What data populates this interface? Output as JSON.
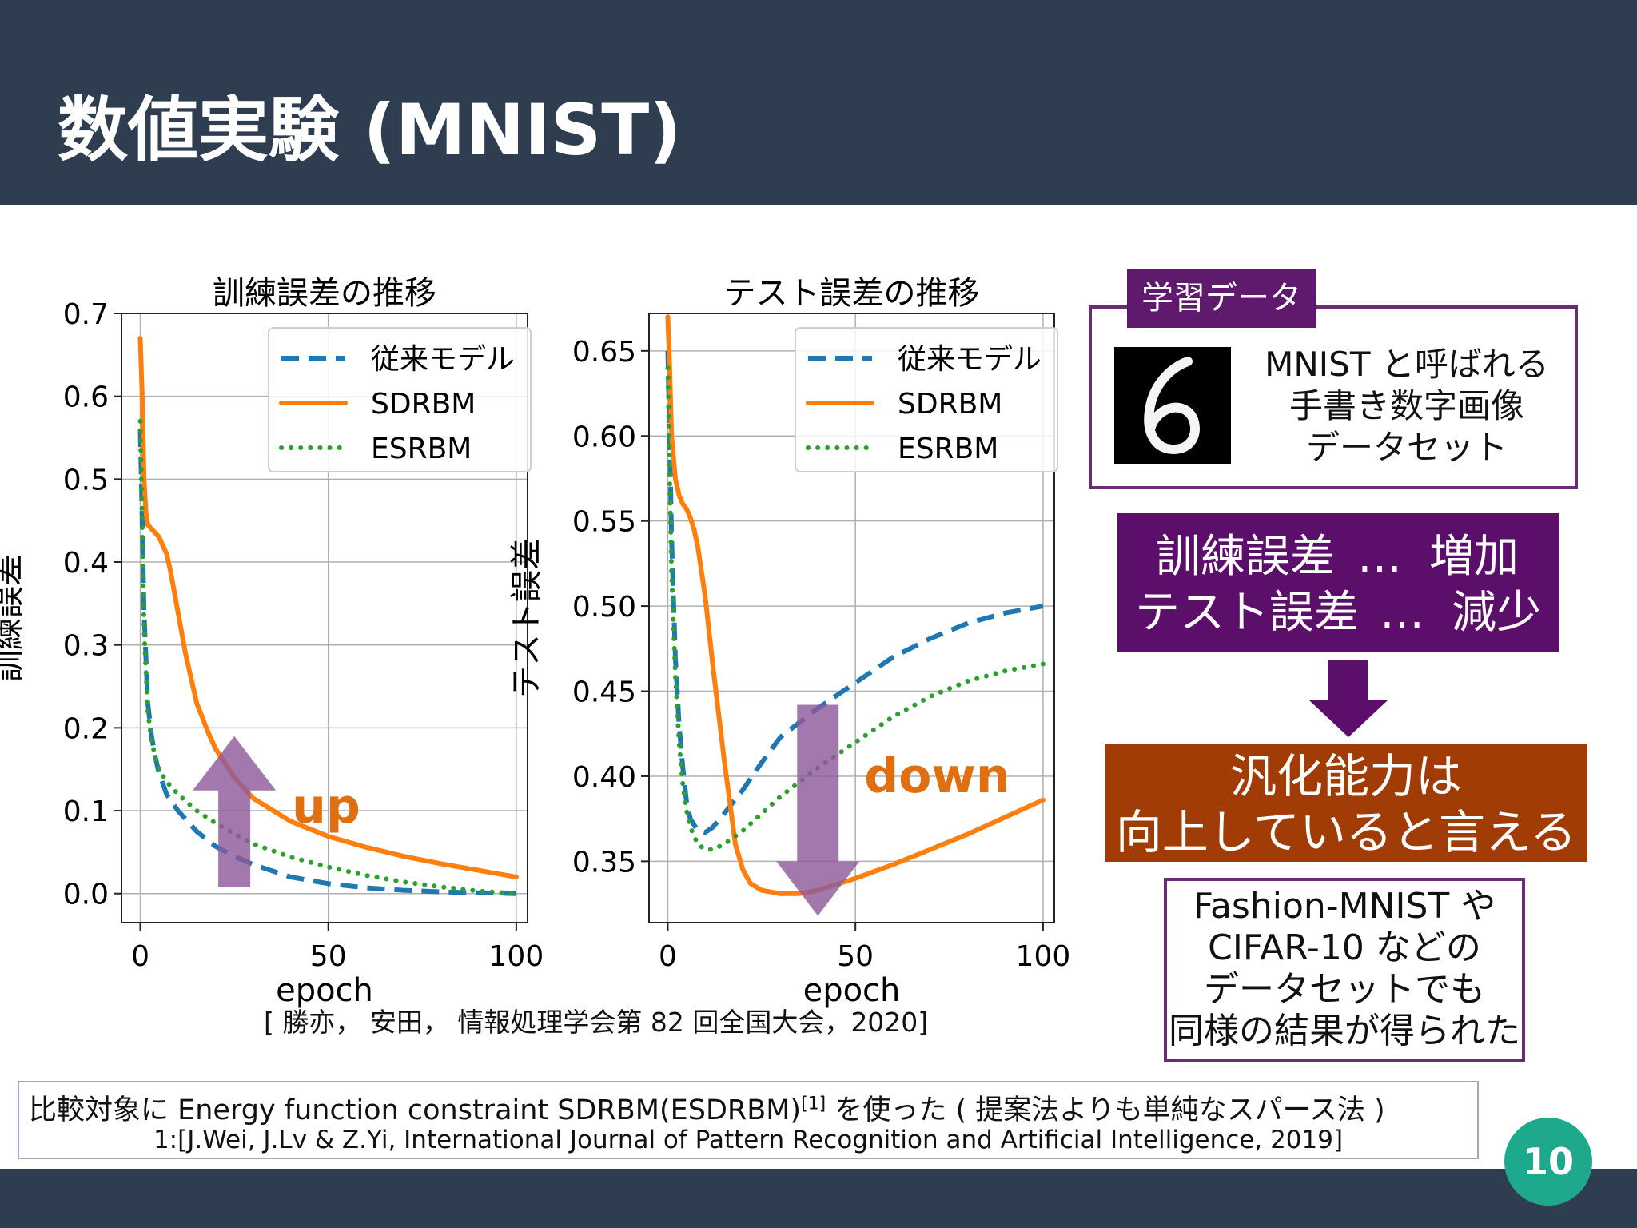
{
  "header": {
    "title": "数値実験 (MNIST)"
  },
  "page_number": "10",
  "citation": "[ 勝亦， 安田， 情報処理学会第 82 回全国大会，2020]",
  "footnote": {
    "line1_a": "比較対象に Energy function constraint SDRBM(ESDRBM)",
    "line1_sup": "[1]",
    "line1_b": " を使った ( 提案法よりも単純なスパース法 )",
    "line2": "1:[J.Wei, J.Lv & Z.Yi, International Journal of Pattern Recognition and Artificial Intelligence, 2019]"
  },
  "data_box": {
    "tab": "学習データ",
    "lines": [
      "MNIST と呼ばれる",
      "手書き数字画像",
      "データセット"
    ],
    "digit": "6"
  },
  "result_box": {
    "line1_left": "訓練誤差",
    "line1_mid": "…",
    "line1_right": "増加",
    "line2_left": "テスト誤差",
    "line2_mid": "…",
    "line2_right": "減少"
  },
  "conclusion": {
    "lines": [
      "汎化能力は",
      "向上していると言える"
    ]
  },
  "other_datasets": {
    "lines": [
      "Fashion-MNIST や",
      "CIFAR-10 などの",
      "データセットでも",
      "同様の結果が得られた"
    ]
  },
  "colors": {
    "header": "#2e3d50",
    "blue": "#1f77b4",
    "orange": "#ff7f0e",
    "green": "#2ca02c",
    "purple": "#5c0f6a",
    "rust": "#a23c07",
    "teal": "#1fa98c",
    "arrow": "#8e5a9b",
    "anno": "#e06f12"
  },
  "chart_data": [
    {
      "type": "line",
      "title": "訓練誤差の推移",
      "xlabel": "epoch",
      "ylabel": "訓練誤差",
      "xlim": [
        -5,
        103
      ],
      "ylim": [
        -0.035,
        0.7
      ],
      "xticks": [
        0,
        50,
        100
      ],
      "yticks": [
        0.0,
        0.1,
        0.2,
        0.3,
        0.4,
        0.5,
        0.6,
        0.7
      ],
      "ytick_labels": [
        "0.0",
        "0.1",
        "0.2",
        "0.3",
        "0.4",
        "0.5",
        "0.6",
        "0.7"
      ],
      "grid": true,
      "legend": "upper right",
      "annotation": {
        "text": "up",
        "arrow": "up",
        "x": 25
      },
      "series": [
        {
          "name": "従来モデル",
          "style": "dashed",
          "x": [
            0,
            0.5,
            1,
            2,
            3,
            4,
            5,
            7,
            10,
            15,
            20,
            25,
            30,
            40,
            50,
            60,
            70,
            80,
            90,
            100
          ],
          "y": [
            0.56,
            0.45,
            0.34,
            0.23,
            0.19,
            0.165,
            0.145,
            0.12,
            0.1,
            0.075,
            0.057,
            0.045,
            0.035,
            0.02,
            0.012,
            0.007,
            0.004,
            0.002,
            0.001,
            0.0
          ]
        },
        {
          "name": "SDRBM",
          "style": "solid",
          "x": [
            0,
            0.5,
            1,
            1.5,
            2,
            3,
            4,
            5,
            6,
            7,
            8,
            10,
            12,
            15,
            18,
            20,
            25,
            30,
            40,
            50,
            60,
            70,
            80,
            90,
            100
          ],
          "y": [
            0.67,
            0.6,
            0.5,
            0.46,
            0.445,
            0.44,
            0.435,
            0.43,
            0.42,
            0.41,
            0.39,
            0.34,
            0.29,
            0.23,
            0.195,
            0.175,
            0.14,
            0.115,
            0.087,
            0.069,
            0.056,
            0.045,
            0.036,
            0.028,
            0.02
          ]
        },
        {
          "name": "ESRBM",
          "style": "dotted",
          "x": [
            0,
            0.5,
            1,
            2,
            3,
            4,
            5,
            7,
            10,
            15,
            20,
            25,
            30,
            40,
            50,
            60,
            70,
            80,
            90,
            100
          ],
          "y": [
            0.57,
            0.45,
            0.32,
            0.22,
            0.185,
            0.165,
            0.15,
            0.135,
            0.12,
            0.1,
            0.085,
            0.072,
            0.06,
            0.044,
            0.032,
            0.022,
            0.014,
            0.008,
            0.003,
            0.0
          ]
        }
      ]
    },
    {
      "type": "line",
      "title": "テスト誤差の推移",
      "xlabel": "epoch",
      "ylabel": "テスト誤差",
      "xlim": [
        -5,
        103
      ],
      "ylim": [
        0.314,
        0.672
      ],
      "xticks": [
        0,
        50,
        100
      ],
      "yticks": [
        0.35,
        0.4,
        0.45,
        0.5,
        0.55,
        0.6,
        0.65
      ],
      "ytick_labels": [
        "0.35",
        "0.40",
        "0.45",
        "0.50",
        "0.55",
        "0.60",
        "0.65"
      ],
      "grid": true,
      "legend": "upper right",
      "annotation": {
        "text": "down",
        "arrow": "down",
        "x": 40
      },
      "series": [
        {
          "name": "従来モデル",
          "style": "dashed",
          "x": [
            0,
            0.5,
            1,
            2,
            3,
            4,
            5,
            6,
            8,
            10,
            12,
            15,
            20,
            25,
            30,
            40,
            50,
            60,
            70,
            80,
            90,
            100
          ],
          "y": [
            0.65,
            0.6,
            0.54,
            0.47,
            0.43,
            0.405,
            0.385,
            0.375,
            0.368,
            0.367,
            0.37,
            0.378,
            0.392,
            0.408,
            0.423,
            0.44,
            0.455,
            0.47,
            0.481,
            0.49,
            0.496,
            0.5
          ]
        },
        {
          "name": "SDRBM",
          "style": "solid",
          "x": [
            0,
            0.5,
            1,
            2,
            3,
            4,
            5,
            6,
            7,
            8,
            10,
            12,
            15,
            18,
            20,
            22,
            25,
            30,
            35,
            40,
            50,
            60,
            70,
            80,
            90,
            100
          ],
          "y": [
            0.67,
            0.64,
            0.6,
            0.575,
            0.565,
            0.56,
            0.557,
            0.552,
            0.545,
            0.535,
            0.505,
            0.465,
            0.41,
            0.36,
            0.345,
            0.337,
            0.333,
            0.331,
            0.331,
            0.333,
            0.34,
            0.348,
            0.357,
            0.366,
            0.376,
            0.386
          ]
        },
        {
          "name": "ESRBM",
          "style": "dotted",
          "x": [
            0,
            0.5,
            1,
            2,
            3,
            4,
            5,
            6,
            8,
            10,
            12,
            15,
            20,
            25,
            30,
            40,
            50,
            60,
            70,
            80,
            90,
            100
          ],
          "y": [
            0.64,
            0.58,
            0.52,
            0.46,
            0.42,
            0.395,
            0.38,
            0.37,
            0.36,
            0.357,
            0.357,
            0.36,
            0.368,
            0.378,
            0.388,
            0.405,
            0.42,
            0.435,
            0.447,
            0.456,
            0.462,
            0.466
          ]
        }
      ]
    }
  ]
}
